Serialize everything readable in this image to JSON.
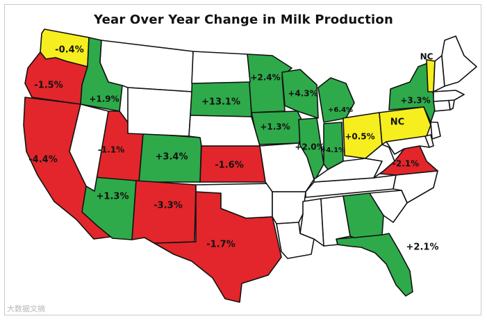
{
  "title": "Year Over Year Change in Milk Production",
  "watermark": "大数据文摘",
  "colors": {
    "increase": "#2eaa4a",
    "decrease": "#e3262b",
    "small_change": "#f6ee1e",
    "no_data": "#ffffff",
    "border": "#111111"
  },
  "states": [
    {
      "abbr": "WA",
      "value": "-0.4%",
      "category": "small_change"
    },
    {
      "abbr": "OR",
      "value": "-1.5%",
      "category": "decrease"
    },
    {
      "abbr": "CA",
      "value": "-4.4%",
      "category": "decrease"
    },
    {
      "abbr": "ID",
      "value": "+1.9%",
      "category": "increase"
    },
    {
      "abbr": "UT",
      "value": "-1.1%",
      "category": "decrease"
    },
    {
      "abbr": "CO",
      "value": "+3.4%",
      "category": "increase"
    },
    {
      "abbr": "AZ",
      "value": "+1.3%",
      "category": "increase"
    },
    {
      "abbr": "NM",
      "value": "-3.3%",
      "category": "decrease"
    },
    {
      "abbr": "TX",
      "value": "-1.7%",
      "category": "decrease"
    },
    {
      "abbr": "SD",
      "value": "+13.1%",
      "category": "increase"
    },
    {
      "abbr": "KS",
      "value": "-1.6%",
      "category": "decrease"
    },
    {
      "abbr": "MN",
      "value": "+2.4%",
      "category": "increase"
    },
    {
      "abbr": "IA",
      "value": "+1.3%",
      "category": "increase"
    },
    {
      "abbr": "WI",
      "value": "+4.3%",
      "category": "increase"
    },
    {
      "abbr": "IL",
      "value": "+2.0%",
      "category": "increase"
    },
    {
      "abbr": "IN",
      "value": "+4.1%",
      "category": "increase"
    },
    {
      "abbr": "MI",
      "value": "+6.4%",
      "category": "increase"
    },
    {
      "abbr": "OH",
      "value": "+0.5%",
      "category": "small_change"
    },
    {
      "abbr": "PA",
      "value": "NC",
      "category": "small_change"
    },
    {
      "abbr": "NY",
      "value": "+3.3%",
      "category": "increase"
    },
    {
      "abbr": "VT",
      "value": "NC",
      "category": "small_change"
    },
    {
      "abbr": "VA",
      "value": "-2.1%",
      "category": "decrease"
    },
    {
      "abbr": "FL",
      "value": "+2.1%",
      "category": "increase"
    },
    {
      "abbr": "GA",
      "value": "",
      "category": "increase"
    },
    {
      "abbr": "NV",
      "value": "",
      "category": "no_data"
    },
    {
      "abbr": "MT",
      "value": "",
      "category": "no_data"
    },
    {
      "abbr": "WY",
      "value": "",
      "category": "no_data"
    },
    {
      "abbr": "ND",
      "value": "",
      "category": "no_data"
    },
    {
      "abbr": "NE",
      "value": "",
      "category": "no_data"
    },
    {
      "abbr": "OK",
      "value": "",
      "category": "no_data"
    },
    {
      "abbr": "MO",
      "value": "",
      "category": "no_data"
    },
    {
      "abbr": "AR",
      "value": "",
      "category": "no_data"
    },
    {
      "abbr": "LA",
      "value": "",
      "category": "no_data"
    },
    {
      "abbr": "MS",
      "value": "",
      "category": "no_data"
    },
    {
      "abbr": "AL",
      "value": "",
      "category": "no_data"
    },
    {
      "abbr": "TN",
      "value": "",
      "category": "no_data"
    },
    {
      "abbr": "KY",
      "value": "",
      "category": "no_data"
    },
    {
      "abbr": "WV",
      "value": "",
      "category": "no_data"
    },
    {
      "abbr": "NC",
      "value": "",
      "category": "no_data"
    },
    {
      "abbr": "SC",
      "value": "",
      "category": "no_data"
    },
    {
      "abbr": "MD",
      "value": "",
      "category": "no_data"
    },
    {
      "abbr": "DE",
      "value": "",
      "category": "no_data"
    },
    {
      "abbr": "NJ",
      "value": "",
      "category": "no_data"
    },
    {
      "abbr": "CT",
      "value": "",
      "category": "no_data"
    },
    {
      "abbr": "RI",
      "value": "",
      "category": "no_data"
    },
    {
      "abbr": "MA",
      "value": "",
      "category": "no_data"
    },
    {
      "abbr": "NH",
      "value": "",
      "category": "no_data"
    },
    {
      "abbr": "ME",
      "value": "",
      "category": "no_data"
    }
  ]
}
